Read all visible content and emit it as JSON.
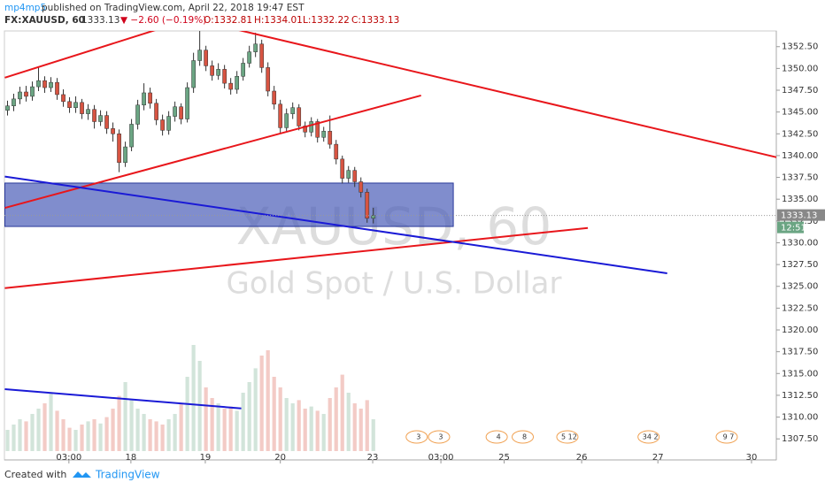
{
  "header": {
    "author": "mp4mp5",
    "published": "published on TradingView.com, April 22, 2018 19:47 EST",
    "symbol": "FX:XAUUSD, 60",
    "last": "1333.13",
    "change": "▼ −2.60 (−0.19%)",
    "open": "O:1332.81",
    "high": "H:1334.01",
    "low": "L:1332.22",
    "close": "C:1333.13"
  },
  "chart_data": {
    "type": "candlestick",
    "watermark": "XAUUSD, 60",
    "subtitle": "Gold Spot / U.S. Dollar",
    "timer": "12:51",
    "up_color": "#6ba583",
    "down_color": "#d75442",
    "xlim": [
      -0.5,
      124
    ],
    "ylim": [
      1306.1,
      1354.3
    ],
    "xticks": [
      {
        "value": 9.9,
        "label": "03:00"
      },
      {
        "value": 19.9,
        "label": "18"
      },
      {
        "value": 31.9,
        "label": "19"
      },
      {
        "value": 44,
        "label": "20"
      },
      {
        "value": 58.9,
        "label": "23"
      },
      {
        "value": 69.9,
        "label": "03:00"
      },
      {
        "value": 80.1,
        "label": "25"
      },
      {
        "value": 92.6,
        "label": "26"
      },
      {
        "value": 104.9,
        "label": "27"
      },
      {
        "value": 120,
        "label": "30"
      }
    ],
    "yticks": [
      {
        "value": 1307.5,
        "label": "1307.50"
      },
      {
        "value": 1310,
        "label": "1310.00"
      },
      {
        "value": 1312.5,
        "label": "1312.50"
      },
      {
        "value": 1315,
        "label": "1315.00"
      },
      {
        "value": 1317.5,
        "label": "1317.50"
      },
      {
        "value": 1320,
        "label": "1320.00"
      },
      {
        "value": 1322.5,
        "label": "1322.50"
      },
      {
        "value": 1325,
        "label": "1325.00"
      },
      {
        "value": 1327.5,
        "label": "1327.50"
      },
      {
        "value": 1330,
        "label": "1330.00"
      },
      {
        "value": 1332.5,
        "label": "1332.50"
      },
      {
        "value": 1335,
        "label": "1335.00"
      },
      {
        "value": 1337.5,
        "label": "1337.50"
      },
      {
        "value": 1340,
        "label": "1340.00"
      },
      {
        "value": 1342.5,
        "label": "1342.50"
      },
      {
        "value": 1345,
        "label": "1345.00"
      },
      {
        "value": 1347.5,
        "label": "1347.50"
      },
      {
        "value": 1350,
        "label": "1350.00"
      },
      {
        "value": 1352.5,
        "label": "1352.50"
      }
    ],
    "open": [
      1345.2,
      1345.7,
      1346.5,
      1347.3,
      1346.8,
      1347.9,
      1348.6,
      1347.8,
      1348.4,
      1347.0,
      1346.2,
      1345.5,
      1346.1,
      1344.8,
      1345.3,
      1343.9,
      1344.6,
      1343.1,
      1342.5,
      1339.2,
      1341.0,
      1343.6,
      1345.8,
      1347.2,
      1346.0,
      1344.1,
      1342.9,
      1344.5,
      1345.6,
      1344.2,
      1347.8,
      1350.9,
      1352.1,
      1350.3,
      1349.2,
      1349.9,
      1348.3,
      1347.6,
      1349.1,
      1350.6,
      1351.9,
      1352.8,
      1350.1,
      1347.4,
      1345.9,
      1343.2,
      1344.8,
      1345.5,
      1343.4,
      1342.7,
      1343.9,
      1342.1,
      1342.8,
      1341.3,
      1339.6,
      1337.4,
      1338.3,
      1337.0,
      1335.8,
      1332.81
    ],
    "high": [
      1346.3,
      1347.1,
      1347.9,
      1348.0,
      1348.5,
      1350.2,
      1349.1,
      1349.0,
      1348.9,
      1347.6,
      1346.7,
      1346.8,
      1346.5,
      1345.9,
      1345.8,
      1345.2,
      1345.1,
      1343.8,
      1343.0,
      1341.6,
      1344.2,
      1346.4,
      1348.3,
      1347.8,
      1346.5,
      1344.7,
      1345.1,
      1346.2,
      1346.0,
      1348.4,
      1351.8,
      1354.3,
      1352.6,
      1350.9,
      1350.6,
      1350.4,
      1348.9,
      1349.7,
      1351.2,
      1352.6,
      1354.1,
      1353.3,
      1350.7,
      1348.0,
      1346.4,
      1345.4,
      1346.1,
      1345.9,
      1343.9,
      1344.4,
      1344.2,
      1343.3,
      1344.6,
      1341.8,
      1340.0,
      1338.8,
      1338.7,
      1337.5,
      1336.2,
      1334.01
    ],
    "low": [
      1344.6,
      1345.1,
      1345.9,
      1346.2,
      1346.3,
      1347.4,
      1347.2,
      1347.3,
      1346.4,
      1345.6,
      1344.9,
      1344.9,
      1344.2,
      1344.1,
      1343.1,
      1343.4,
      1342.5,
      1341.6,
      1338.1,
      1338.7,
      1340.5,
      1343.0,
      1345.2,
      1345.4,
      1343.5,
      1342.3,
      1342.4,
      1343.9,
      1343.6,
      1343.8,
      1347.2,
      1350.3,
      1349.7,
      1348.6,
      1348.7,
      1347.7,
      1347.0,
      1347.1,
      1348.6,
      1350.1,
      1351.3,
      1349.5,
      1346.8,
      1345.3,
      1342.6,
      1342.8,
      1344.2,
      1342.9,
      1342.1,
      1342.2,
      1341.5,
      1341.6,
      1340.8,
      1339.0,
      1336.8,
      1336.9,
      1336.4,
      1335.2,
      1332.3,
      1332.22
    ],
    "close": [
      1345.7,
      1346.5,
      1347.3,
      1346.8,
      1347.9,
      1348.6,
      1347.8,
      1348.4,
      1347.0,
      1346.2,
      1345.5,
      1346.1,
      1344.8,
      1345.3,
      1343.9,
      1344.6,
      1343.1,
      1342.5,
      1339.2,
      1341.0,
      1343.6,
      1345.8,
      1347.2,
      1346.0,
      1344.1,
      1342.9,
      1344.5,
      1345.6,
      1344.2,
      1347.8,
      1350.9,
      1352.1,
      1350.3,
      1349.2,
      1349.9,
      1348.3,
      1347.6,
      1349.1,
      1350.6,
      1351.9,
      1352.8,
      1350.1,
      1347.4,
      1345.9,
      1343.2,
      1344.8,
      1345.5,
      1343.4,
      1342.7,
      1343.9,
      1342.1,
      1342.8,
      1341.3,
      1339.6,
      1337.4,
      1338.3,
      1337.0,
      1335.8,
      1332.81,
      1333.13
    ],
    "volume": [
      20,
      25,
      30,
      28,
      35,
      40,
      45,
      55,
      38,
      30,
      22,
      20,
      25,
      28,
      30,
      26,
      32,
      40,
      52,
      65,
      48,
      40,
      35,
      30,
      28,
      25,
      30,
      35,
      45,
      70,
      100,
      85,
      60,
      50,
      45,
      40,
      42,
      38,
      55,
      65,
      78,
      90,
      95,
      70,
      60,
      50,
      45,
      48,
      40,
      42,
      38,
      35,
      50,
      60,
      72,
      55,
      45,
      40,
      48,
      30
    ],
    "zone": {
      "x": [
        -0.43,
        71.9
      ],
      "y": [
        1331.87,
        1336.85
      ],
      "color": "#4a5cb8"
    },
    "lines": [
      {
        "color": "#e8161b",
        "x": [
          -0.43,
          24.3
        ],
        "y": [
          1348.94,
          1354.5
        ]
      },
      {
        "color": "#e8161b",
        "x": [
          36.7,
          124.1
        ],
        "y": [
          1354.5,
          1339.8
        ]
      },
      {
        "color": "#e8161b",
        "x": [
          -0.43,
          66.7
        ],
        "y": [
          1334.0,
          1346.9
        ]
      },
      {
        "color": "#e8161b",
        "x": [
          -0.43,
          93.6
        ],
        "y": [
          1324.8,
          1331.7
        ]
      },
      {
        "color": "#1a1ad6",
        "x": [
          -0.43,
          106.4
        ],
        "y": [
          1337.6,
          1326.5
        ]
      },
      {
        "color": "#1a1ad6",
        "x": [
          -0.43,
          37.7
        ],
        "y": [
          1313.2,
          1311.0
        ]
      }
    ],
    "events": [
      {
        "x": 66,
        "label": "3"
      },
      {
        "x": 69.6,
        "label": "3"
      },
      {
        "x": 78.9,
        "label": "4"
      },
      {
        "x": 83.1,
        "label": "8"
      },
      {
        "x": 90.3,
        "label": "5 12"
      },
      {
        "x": 103.4,
        "label": "34 2"
      },
      {
        "x": 116,
        "label": "9 7"
      }
    ]
  },
  "footer": {
    "created": "Created with",
    "brand": "TradingView"
  }
}
